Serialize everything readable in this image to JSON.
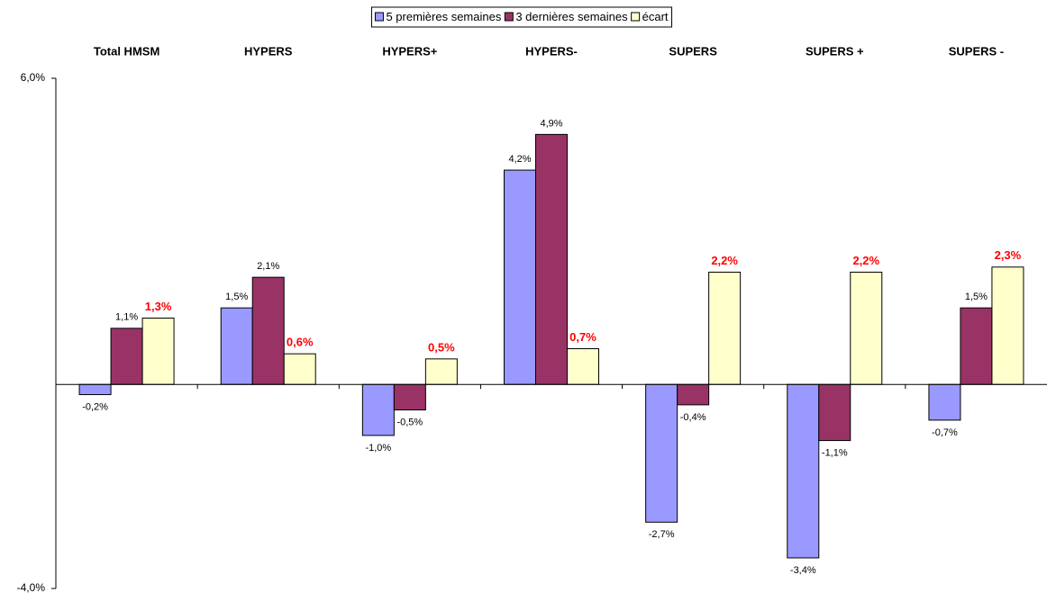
{
  "chart_data": {
    "type": "bar",
    "categories": [
      "Total HMSM",
      "HYPERS",
      "HYPERS+",
      "HYPERS-",
      "SUPERS",
      "SUPERS +",
      "SUPERS -"
    ],
    "series": [
      {
        "name": "5 premières semaines",
        "color": "#9999ff",
        "label_color": "#000000",
        "label_bold": false,
        "values": [
          -0.2,
          1.5,
          -1.0,
          4.2,
          -2.7,
          -3.4,
          -0.7
        ],
        "value_labels": [
          "-0,2%",
          "1,5%",
          "-1,0%",
          "4,2%",
          "-2,7%",
          "-3,4%",
          "-0,7%"
        ]
      },
      {
        "name": "3 dernières semaines",
        "color": "#993366",
        "label_color": "#000000",
        "label_bold": false,
        "values": [
          1.1,
          2.1,
          -0.5,
          4.9,
          -0.4,
          -1.1,
          1.5
        ],
        "value_labels": [
          "1,1%",
          "2,1%",
          "-0,5%",
          "4,9%",
          "-0,4%",
          "-1,1%",
          "1,5%"
        ]
      },
      {
        "name": "écart",
        "color": "#ffffcc",
        "label_color": "#ff0000",
        "label_bold": true,
        "values": [
          1.3,
          0.6,
          0.5,
          0.7,
          2.2,
          2.2,
          2.3
        ],
        "value_labels": [
          "1,3%",
          "0,6%",
          "0,5%",
          "0,7%",
          "2,2%",
          "2,2%",
          "2,3%"
        ]
      }
    ],
    "ylim": [
      -4,
      6
    ],
    "yticks": [
      {
        "value": -4,
        "label": "-4,0%"
      },
      {
        "value": 6,
        "label": "6,0%"
      }
    ],
    "legend": "top"
  }
}
